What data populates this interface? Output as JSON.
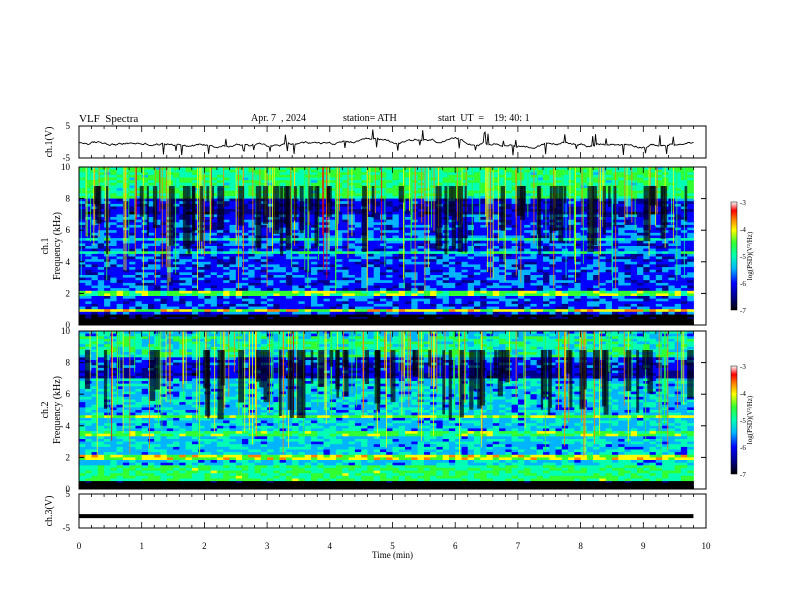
{
  "header": {
    "title": "VLF  Spectra",
    "date": "Apr. 7  , 2024",
    "station": "station= ATH",
    "start": "start  UT  =    19: 40: 1"
  },
  "colors": {
    "spectrogram_ramp": [
      "#000000",
      "#00008b",
      "#0000ff",
      "#00b4ff",
      "#00ffb4",
      "#32ff32",
      "#ffff00",
      "#ff8000",
      "#ff0000",
      "#ffffff"
    ]
  },
  "chart_data": [
    {
      "type": "line",
      "panel": "ch1-waveform",
      "ylabel": "ch.1(V)",
      "ylim": [
        -5,
        5
      ],
      "yticks": [
        "5",
        "-5"
      ],
      "description_values": {
        "baseline": -0.5,
        "approx_range": [
          -2.5,
          2.0
        ]
      }
    },
    {
      "type": "heatmap",
      "panel": "ch1-spectrogram",
      "ylabel_top": "ch.1",
      "ylabel": "Frequency  (kHz)",
      "ylim": [
        0,
        10
      ],
      "yticks": [
        "0",
        "2",
        "4",
        "6",
        "8",
        "10"
      ],
      "xlim": [
        0,
        9.8
      ],
      "colorbar": {
        "label": "log(PSD)(V²/Hz)",
        "range": [
          -7,
          -3
        ],
        "ticks": [
          "-3",
          "-4",
          "-5",
          "-6",
          "-7"
        ]
      }
    },
    {
      "type": "heatmap",
      "panel": "ch2-spectrogram",
      "ylabel_top": "ch.2",
      "ylabel": "Frequency  (kHz)",
      "ylim": [
        0,
        10
      ],
      "yticks": [
        "0",
        "2",
        "4",
        "6",
        "8",
        "10"
      ],
      "xlim": [
        0,
        9.8
      ],
      "colorbar": {
        "label": "log(PSD)(V²/Hz)",
        "range": [
          -7,
          -3
        ],
        "ticks": [
          "-3",
          "-4",
          "-5",
          "-6",
          "-7"
        ]
      }
    },
    {
      "type": "line",
      "panel": "ch3-waveform",
      "ylabel": "ch.3(V)",
      "ylim": [
        -5,
        5
      ],
      "yticks": [
        "5",
        "-5"
      ],
      "values_constant": -1.5
    }
  ],
  "xaxis": {
    "label": "Time  (min)",
    "range": [
      0,
      10
    ],
    "ticks": [
      "0",
      "1",
      "2",
      "3",
      "4",
      "5",
      "6",
      "7",
      "8",
      "9",
      "10"
    ]
  }
}
